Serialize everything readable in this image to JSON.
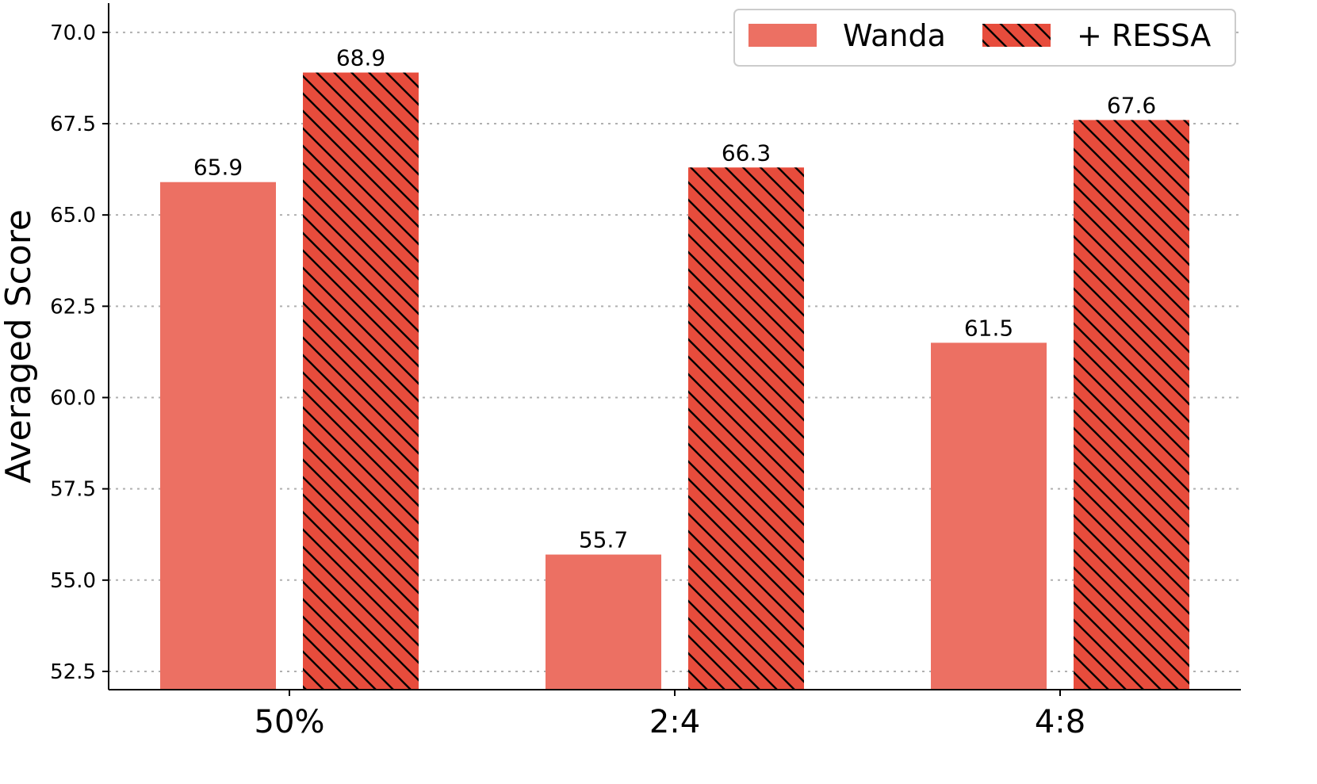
{
  "chart_data": {
    "type": "bar",
    "categories": [
      "50%",
      "2:4",
      "4:8"
    ],
    "series": [
      {
        "name": "Wanda",
        "values": [
          65.9,
          55.7,
          61.5
        ],
        "color": "#EC7063",
        "hatch": false
      },
      {
        "name": "+ RESSA",
        "values": [
          68.9,
          66.3,
          67.6
        ],
        "color": "#E74C3C",
        "hatch": true
      }
    ],
    "ylabel": "Averaged Score",
    "xlabel": "",
    "ylim": [
      52.0,
      70.8
    ],
    "yticks": [
      52.5,
      55.0,
      57.5,
      60.0,
      62.5,
      65.0,
      67.5,
      70.0
    ],
    "grid": "horizontal-dotted",
    "legend": "top-right"
  }
}
